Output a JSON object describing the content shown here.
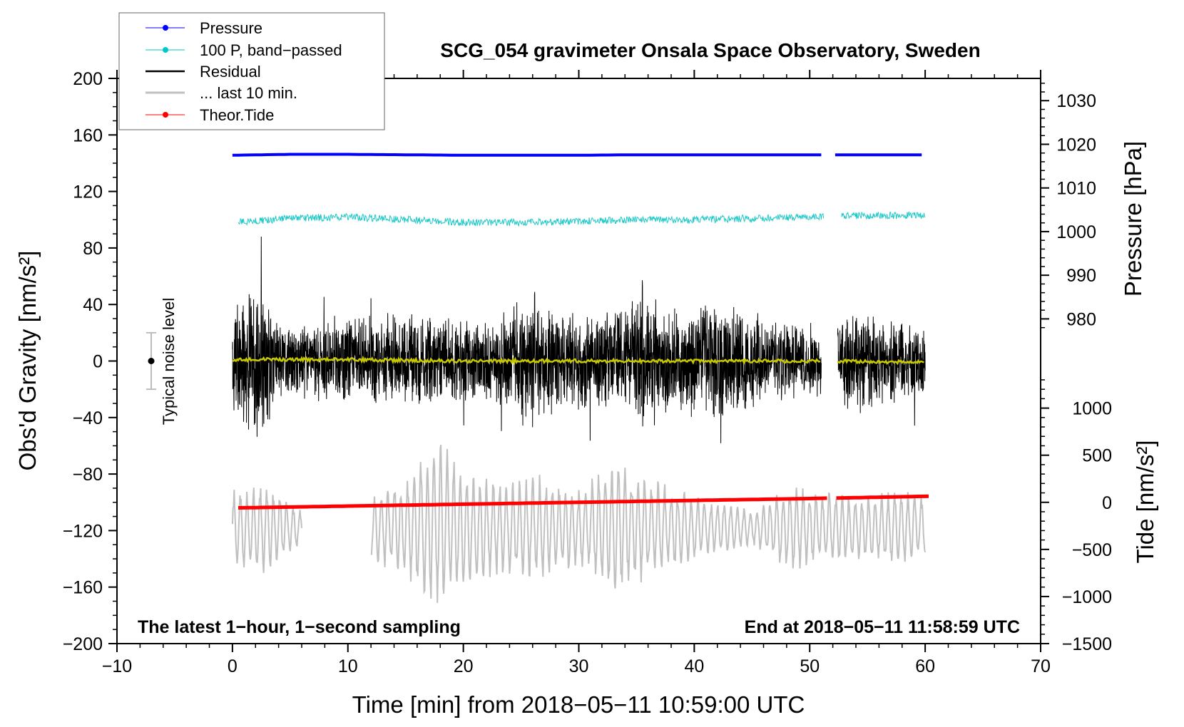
{
  "chart_data": {
    "type": "line",
    "title": "SCG_054 gravimeter Onsala Space Observatory, Sweden",
    "xlabel": "Time [min] from 2018−05−11 10:59:00 UTC",
    "ylabel": "Obs'd Gravity [nm/s²]",
    "ylabel_right_top": "Pressure [hPa]",
    "ylabel_right_bottom": "Tide [nm/s²]",
    "xlim": [
      -10,
      70
    ],
    "ylim": [
      -200,
      200
    ],
    "pressure_lim": [
      905.6,
      1035.1
    ],
    "tide_lim": [
      -1500,
      4500
    ],
    "x_ticks": [
      "−10",
      "0",
      "10",
      "20",
      "30",
      "40",
      "50",
      "60",
      "70"
    ],
    "x_tick_values": [
      -10,
      0,
      10,
      20,
      30,
      40,
      50,
      60,
      70
    ],
    "y_ticks": [
      "200",
      "160",
      "120",
      "80",
      "40",
      "0",
      "−40",
      "−80",
      "−120",
      "−160",
      "−200"
    ],
    "y_tick_values": [
      200,
      160,
      120,
      80,
      40,
      0,
      -40,
      -80,
      -120,
      -160,
      -200
    ],
    "pressure_ticks": [
      "1030",
      "1020",
      "1010",
      "1000",
      "990",
      "980"
    ],
    "pressure_tick_values": [
      1030,
      1020,
      1010,
      1000,
      990,
      980
    ],
    "tide_ticks": [
      "1000",
      "500",
      "0",
      "−500",
      "−1000",
      "−1500"
    ],
    "tide_tick_values": [
      1000,
      500,
      0,
      -500,
      -1000,
      -1500
    ],
    "grid": false,
    "legend_placement": "top-left",
    "legend": [
      {
        "label": "Pressure",
        "color": "#0000ff",
        "marker": true
      },
      {
        "label": "100 P, band−passed",
        "color": "#00c8c8",
        "marker": true
      },
      {
        "label": "Residual",
        "color": "#000000",
        "marker": false
      },
      {
        "label": "... last 10 min.",
        "color": "#c0c0c0",
        "marker": false
      },
      {
        "label": "Theor.Tide",
        "color": "#ff0000",
        "marker": true
      }
    ],
    "annotations": {
      "bottom_left": "The latest 1−hour, 1−second sampling",
      "bottom_right": "End at 2018−05−11 11:58:59 UTC",
      "noise_label": "Typical noise level",
      "noise_bar": [
        -20,
        20
      ]
    },
    "gaps_min": [
      51.0,
      52.4
    ],
    "series": [
      {
        "name": "Pressure",
        "axis": "pressure",
        "color": "#0000ff",
        "x": [
          0,
          5,
          10,
          15,
          20,
          25,
          30,
          35,
          40,
          45,
          50,
          51,
          52.2,
          55,
          60
        ],
        "y": [
          1017.5,
          1017.7,
          1017.7,
          1017.6,
          1017.5,
          1017.5,
          1017.5,
          1017.6,
          1017.6,
          1017.6,
          1017.6,
          1017.6,
          1017.6,
          1017.6,
          1017.6
        ]
      },
      {
        "name": "100 P, band-passed",
        "axis": "gravity",
        "color": "#20c8c8",
        "x": [
          0,
          5,
          10,
          15,
          20,
          25,
          30,
          35,
          40,
          45,
          50,
          51,
          52.7,
          55,
          60
        ],
        "y": [
          98,
          101,
          102,
          100,
          98,
          98,
          99,
          100,
          100,
          101,
          102,
          102,
          103,
          103,
          103
        ]
      },
      {
        "name": "Residual",
        "axis": "gravity",
        "color": "#000000",
        "x": [
          0,
          2,
          4,
          6,
          8,
          10,
          12,
          14,
          16,
          18,
          20,
          22,
          24,
          26,
          28,
          30,
          32,
          34,
          36,
          38,
          40,
          42,
          44,
          46,
          48,
          50,
          51,
          52.4,
          54,
          56,
          58,
          60
        ],
        "amplitude": [
          40,
          55,
          28,
          26,
          30,
          32,
          30,
          34,
          30,
          32,
          28,
          30,
          34,
          48,
          34,
          32,
          36,
          38,
          50,
          36,
          38,
          44,
          36,
          30,
          28,
          26,
          26,
          32,
          36,
          30,
          28,
          24
        ]
      },
      {
        "name": "Residual smoothed",
        "axis": "gravity",
        "color": "#c8c800",
        "x": [
          0,
          10,
          20,
          30,
          40,
          50,
          51,
          52.4,
          60
        ],
        "y": [
          1,
          1,
          0,
          0,
          0,
          0,
          0,
          0,
          -1
        ]
      },
      {
        "name": "... last 10 min.",
        "axis": "gravity",
        "color": "#c0c0c0",
        "segments": [
          [
            0,
            6
          ],
          [
            12,
            60
          ]
        ],
        "center": -118,
        "x": [
          0,
          3,
          6,
          12,
          15,
          18,
          21,
          24,
          27,
          30,
          33,
          36,
          39,
          42,
          45,
          48,
          51,
          54,
          57,
          60
        ],
        "amplitude": [
          25,
          30,
          12,
          20,
          35,
          55,
          35,
          30,
          35,
          25,
          45,
          35,
          25,
          18,
          12,
          30,
          25,
          22,
          25,
          22
        ]
      },
      {
        "name": "Theor.Tide",
        "axis": "tide",
        "color": "#ff0000",
        "x": [
          0,
          10,
          20,
          30,
          40,
          50,
          51.7,
          52.3,
          60.5
        ],
        "y": [
          -60,
          -40,
          -20,
          0,
          20,
          40,
          45,
          45,
          65
        ]
      }
    ]
  }
}
